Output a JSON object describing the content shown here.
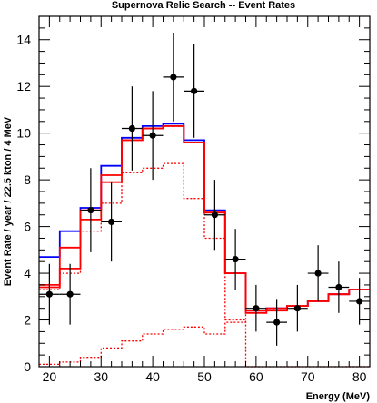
{
  "chart_data": {
    "type": "histogram",
    "title": "Supernova Relic Search -- Event Rates",
    "xlabel": "Energy (MeV)",
    "ylabel": "Event Rate / year / 22.5 kton / 4 MeV",
    "xlim": [
      18,
      82
    ],
    "ylim": [
      0,
      15
    ],
    "x_ticks": [
      20,
      30,
      40,
      50,
      60,
      70,
      80
    ],
    "y_ticks": [
      0,
      2,
      4,
      6,
      8,
      10,
      12,
      14
    ],
    "grid": false,
    "bin_edges": [
      18,
      22,
      26,
      30,
      34,
      38,
      42,
      46,
      50,
      54,
      58,
      62,
      66,
      70,
      74,
      78,
      82
    ],
    "series": [
      {
        "color": "#0000ff",
        "style": "solid",
        "values": [
          4.7,
          5.8,
          6.8,
          8.6,
          9.8,
          10.3,
          10.4,
          9.7,
          6.7,
          4.0,
          2.4,
          2.5,
          2.6,
          2.8,
          3.1,
          3.3
        ]
      },
      {
        "color": "#ff0000",
        "style": "solid",
        "values": [
          3.5,
          5.1,
          6.7,
          8.2,
          9.7,
          10.2,
          10.3,
          9.6,
          6.6,
          4.0,
          2.3,
          2.4,
          2.6,
          2.8,
          3.1,
          3.3
        ]
      },
      {
        "color": "#ff0000",
        "style": "solid",
        "values": [
          3.4,
          4.2,
          6.3,
          7.9,
          9.7,
          10.2,
          10.3,
          9.6,
          6.6,
          4.0,
          2.4,
          2.5,
          2.6,
          2.8,
          3.1,
          3.3
        ]
      },
      {
        "color": "#ff0000",
        "style": "dotted",
        "values": [
          3.3,
          4.0,
          5.8,
          7.0,
          8.3,
          8.5,
          8.7,
          7.2,
          5.5,
          2.0,
          0.0,
          0.0,
          0.0,
          0.0,
          0.0,
          0.0
        ]
      },
      {
        "color": "#ff0000",
        "style": "dotted",
        "values": [
          0.1,
          0.2,
          0.4,
          0.8,
          1.1,
          1.4,
          1.6,
          1.7,
          1.4,
          1.9,
          2.3,
          2.5,
          2.6,
          2.8,
          3.1,
          3.3
        ]
      }
    ],
    "data_points": {
      "color": "#000000",
      "x": [
        20,
        24,
        28,
        32,
        36,
        40,
        44,
        48,
        52,
        56,
        60,
        64,
        68,
        72,
        76,
        80
      ],
      "y": [
        3.1,
        3.1,
        6.7,
        6.2,
        10.2,
        9.9,
        12.4,
        11.8,
        6.5,
        4.6,
        2.5,
        1.9,
        2.5,
        4.0,
        3.4,
        2.8
      ],
      "yerr": [
        1.3,
        1.3,
        1.8,
        1.7,
        1.8,
        1.9,
        1.9,
        2.0,
        1.5,
        1.3,
        1.0,
        1.0,
        1.0,
        1.2,
        1.1,
        1.0
      ]
    }
  }
}
